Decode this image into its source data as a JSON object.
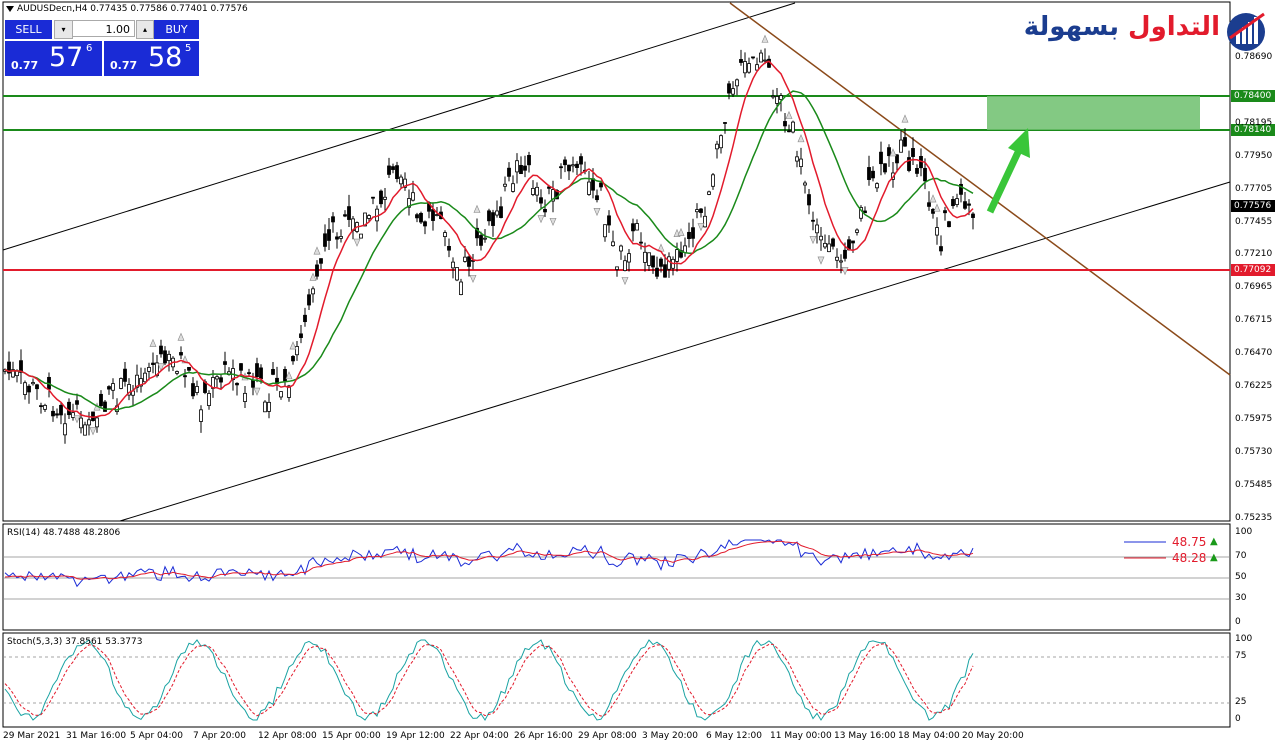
{
  "symbol_info": "AUDUSDecn,H4  0.77435 0.77586 0.77401 0.77576",
  "trade_panel": {
    "sell_label": "SELL",
    "buy_label": "BUY",
    "lot_value": "1.00",
    "sell_price_small": "0.77",
    "sell_price_big": "57",
    "sell_price_sup": "6",
    "buy_price_small": "0.77",
    "buy_price_big": "58",
    "buy_price_sup": "5"
  },
  "logo": {
    "text_red": "التداول",
    "text_blue": "بسهولة"
  },
  "colors": {
    "sell_buy": "#1a2bd6",
    "resistance": "#1a8a1a",
    "support": "#e21b2c",
    "trendline": "#8b4a1a",
    "ma_fast": "#e21b2c",
    "ma_slow": "#1a8a1a",
    "target_zone": "#6dbf6d",
    "arrow": "#39c639"
  },
  "price_axis": [
    "0.78690",
    "0.78195",
    "0.77950",
    "0.77705",
    "0.77455",
    "0.77210",
    "0.76965",
    "0.76715",
    "0.76470",
    "0.76225",
    "0.75975",
    "0.75730",
    "0.75485",
    "0.75235"
  ],
  "price_tags": {
    "r1": "0.78400",
    "r2": "0.78140",
    "current": "0.77576",
    "support": "0.77092"
  },
  "time_axis": [
    "29 Mar 2021",
    "31 Mar 16:00",
    "5 Apr 04:00",
    "7 Apr 20:00",
    "12 Apr 08:00",
    "15 Apr 00:00",
    "19 Apr 12:00",
    "22 Apr 04:00",
    "26 Apr 16:00",
    "29 Apr 08:00",
    "3 May 20:00",
    "6 May 12:00",
    "11 May 00:00",
    "13 May 16:00",
    "18 May 04:00",
    "20 May 20:00"
  ],
  "rsi": {
    "label": "RSI(14) 48.7488 48.2806",
    "val1": "48.75",
    "val2": "48.28",
    "axis": [
      "100",
      "70",
      "50",
      "30",
      "0"
    ]
  },
  "stoch": {
    "label": "Stoch(5,3,3) 37.8561 53.3773",
    "axis": [
      "100",
      "75",
      "25",
      "0"
    ]
  }
}
